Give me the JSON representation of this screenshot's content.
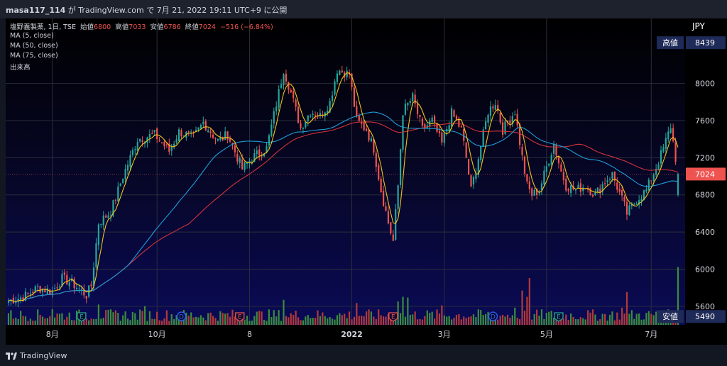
{
  "header": {
    "user": "masa117_114",
    "text": " が TradingView.com で 7月 21, 2022 19:11 UTC+9 に公開"
  },
  "legend": {
    "symbol": "塩野義製薬, 1日, TSE",
    "open_label": "始値",
    "open_value": "6800",
    "high_label": "高値",
    "high_value": "7033",
    "low_label": "安値",
    "low_value": "6786",
    "close_label": "終値",
    "close_value": "7024",
    "change": "−516 (−6.84%)",
    "ma5": "MA (5, close)",
    "ma50": "MA (50, close)",
    "ma75": "MA (75, close)",
    "volume": "出来高"
  },
  "currency": "JPY",
  "price_tags": {
    "high_label": "高値",
    "high_value": "8439",
    "low_label": "安値",
    "low_value": "5490",
    "last_value": "7024"
  },
  "footer": {
    "brand": "TradingView"
  },
  "colors": {
    "up": "#26a69a",
    "down": "#ef5350",
    "vol_up": "#3c8c3a",
    "vol_down": "#b23a36",
    "ma5": "#f0c419",
    "ma50": "#1e9ed6",
    "ma75": "#d2333a",
    "tag_bg": "#1e2a57",
    "last_bg": "#ef5350"
  },
  "chart_data": {
    "type": "candlestick",
    "title": "塩野義製薬, 1日, TSE",
    "ylim": [
      5400,
      8700
    ],
    "yticks": [
      5600,
      6000,
      6400,
      6800,
      7200,
      7600,
      8000
    ],
    "xticks": [
      {
        "label": "8月",
        "day": 18
      },
      {
        "label": "10月",
        "day": 61
      },
      {
        "label": "8",
        "day": 99
      },
      {
        "label": "2022",
        "day": 141
      },
      {
        "label": "3月",
        "day": 179
      },
      {
        "label": "5月",
        "day": 221
      },
      {
        "label": "7月",
        "day": 264
      }
    ],
    "events": [
      {
        "day": 30,
        "label": "E",
        "kind": "earnings",
        "color": "#26a69a"
      },
      {
        "day": 71,
        "label": "D",
        "kind": "dividend",
        "color": "#2962ff"
      },
      {
        "day": 95,
        "label": "E",
        "kind": "earnings",
        "color": "#ef5350"
      },
      {
        "day": 158,
        "label": "E",
        "kind": "earnings",
        "color": "#ef5350"
      },
      {
        "day": 199,
        "label": "D",
        "kind": "dividend",
        "color": "#2962ff"
      },
      {
        "day": 226,
        "label": "E",
        "kind": "earnings",
        "color": "#26a69a"
      }
    ],
    "price_anchors": [
      [
        0,
        5660
      ],
      [
        6,
        5700
      ],
      [
        12,
        5800
      ],
      [
        18,
        5760
      ],
      [
        22,
        5900
      ],
      [
        26,
        5850
      ],
      [
        32,
        5720
      ],
      [
        34,
        5820
      ],
      [
        37,
        6500
      ],
      [
        42,
        6620
      ],
      [
        47,
        7000
      ],
      [
        53,
        7400
      ],
      [
        60,
        7450
      ],
      [
        66,
        7270
      ],
      [
        70,
        7480
      ],
      [
        76,
        7420
      ],
      [
        80,
        7580
      ],
      [
        86,
        7380
      ],
      [
        90,
        7450
      ],
      [
        96,
        7080
      ],
      [
        100,
        7200
      ],
      [
        106,
        7300
      ],
      [
        110,
        7780
      ],
      [
        113,
        8150
      ],
      [
        116,
        7900
      ],
      [
        120,
        7520
      ],
      [
        124,
        7700
      ],
      [
        128,
        7650
      ],
      [
        132,
        7800
      ],
      [
        135,
        8150
      ],
      [
        140,
        8100
      ],
      [
        143,
        7600
      ],
      [
        147,
        7500
      ],
      [
        150,
        7300
      ],
      [
        153,
        6850
      ],
      [
        156,
        6500
      ],
      [
        158,
        6300
      ],
      [
        160,
        6900
      ],
      [
        162,
        7700
      ],
      [
        166,
        7850
      ],
      [
        170,
        7500
      ],
      [
        174,
        7600
      ],
      [
        178,
        7350
      ],
      [
        182,
        7680
      ],
      [
        186,
        7500
      ],
      [
        188,
        7200
      ],
      [
        190,
        6850
      ],
      [
        193,
        7200
      ],
      [
        197,
        7700
      ],
      [
        200,
        7800
      ],
      [
        203,
        7500
      ],
      [
        208,
        7700
      ],
      [
        211,
        7200
      ],
      [
        213,
        6900
      ],
      [
        215,
        6800
      ],
      [
        218,
        6850
      ],
      [
        221,
        7100
      ],
      [
        224,
        7350
      ],
      [
        227,
        7050
      ],
      [
        229,
        6900
      ],
      [
        233,
        6850
      ],
      [
        237,
        6900
      ],
      [
        241,
        6800
      ],
      [
        245,
        6950
      ],
      [
        248,
        7020
      ],
      [
        252,
        6750
      ],
      [
        254,
        6600
      ],
      [
        258,
        6750
      ],
      [
        262,
        6850
      ],
      [
        266,
        7100
      ],
      [
        269,
        7300
      ],
      [
        272,
        7540
      ],
      [
        275,
        7024
      ]
    ],
    "volume_spikes": [
      [
        0,
        1.5
      ],
      [
        18,
        2.0
      ],
      [
        37,
        2.6
      ],
      [
        56,
        2.4
      ],
      [
        113,
        3.2
      ],
      [
        143,
        2.8
      ],
      [
        160,
        3.0
      ],
      [
        162,
        3.6
      ],
      [
        164,
        3.5
      ],
      [
        178,
        2.5
      ],
      [
        208,
        2.2
      ],
      [
        211,
        4.4
      ],
      [
        213,
        3.6
      ],
      [
        214,
        6.0
      ],
      [
        252,
        2.2
      ],
      [
        254,
        4.2
      ],
      [
        275,
        7.4
      ]
    ],
    "series": [
      {
        "name": "MA (5, close)",
        "color": "#f0c419"
      },
      {
        "name": "MA (50, close)",
        "color": "#1e9ed6"
      },
      {
        "name": "MA (75, close)",
        "color": "#d2333a"
      },
      {
        "name": "出来高"
      }
    ]
  }
}
